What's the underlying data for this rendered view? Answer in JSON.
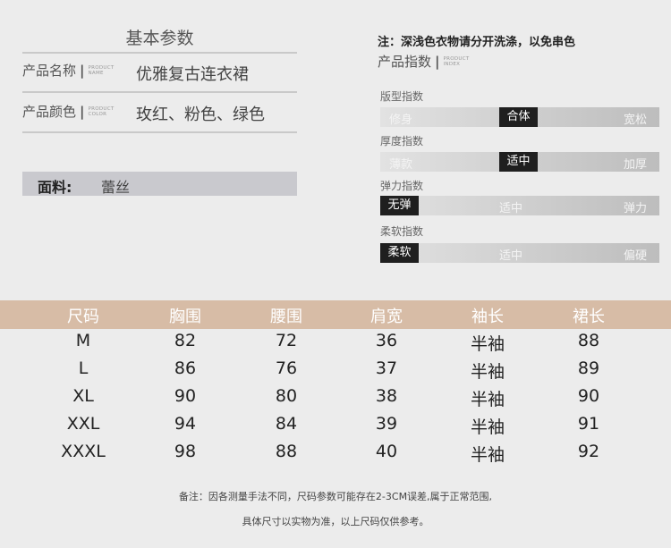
{
  "basic": {
    "title": "基本参数",
    "rows": [
      {
        "label": "产品名称",
        "en1": "PRODUCT",
        "en2": "NAME",
        "value": "优雅复古连衣裙"
      },
      {
        "label": "产品颜色",
        "en1": "PRODUCT",
        "en2": "COLOR",
        "value": "玫红、粉色、绿色"
      }
    ],
    "fabric_label": "面料:",
    "fabric_value": "蕾丝"
  },
  "note": "注：深浅色衣物请分开洗涤，以免串色",
  "index": {
    "title": "产品指数",
    "en1": "PRODUCT",
    "en2": "INDEX",
    "items": [
      {
        "label": "版型指数",
        "options": [
          "修身",
          "合体",
          "宽松"
        ],
        "selected": 1
      },
      {
        "label": "厚度指数",
        "options": [
          "薄款",
          "适中",
          "加厚"
        ],
        "selected": 1
      },
      {
        "label": "弹力指数",
        "options": [
          "无弹",
          "适中",
          "弹力"
        ],
        "selected": 0
      },
      {
        "label": "柔软指数",
        "options": [
          "柔软",
          "适中",
          "偏硬"
        ],
        "selected": 0
      }
    ]
  },
  "size_table": {
    "headers": [
      "尺码",
      "胸围",
      "腰围",
      "肩宽",
      "袖长",
      "裙长"
    ],
    "rows": [
      [
        "M",
        "82",
        "72",
        "36",
        "半袖",
        "88"
      ],
      [
        "L",
        "86",
        "76",
        "37",
        "半袖",
        "89"
      ],
      [
        "XL",
        "90",
        "80",
        "38",
        "半袖",
        "90"
      ],
      [
        "XXL",
        "94",
        "84",
        "39",
        "半袖",
        "91"
      ],
      [
        "XXXL",
        "98",
        "88",
        "40",
        "半袖",
        "92"
      ]
    ]
  },
  "footer": [
    "备注：因各测量手法不同，尺码参数可能存在2-3CM误差,属于正常范围,",
    "具体尺寸以实物为准，以上尺码仅供参考。"
  ],
  "colors": {
    "header_band": "#d7bca6",
    "selected": "#1f1f1f"
  }
}
